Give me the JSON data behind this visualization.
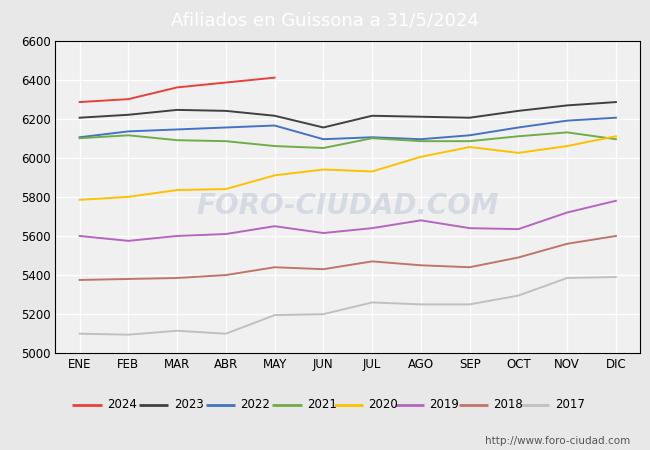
{
  "title": "Afiliados en Guissona a 31/5/2024",
  "title_bg_color": "#5b9bd5",
  "title_text_color": "white",
  "ylim": [
    5000,
    6600
  ],
  "yticks": [
    5000,
    5200,
    5400,
    5600,
    5800,
    6000,
    6200,
    6400,
    6600
  ],
  "months": [
    "ENE",
    "FEB",
    "MAR",
    "ABR",
    "MAY",
    "JUN",
    "JUL",
    "AGO",
    "SEP",
    "OCT",
    "NOV",
    "DIC"
  ],
  "watermark": "http://www.foro-ciudad.com",
  "foro_watermark": "FORO-CIUDAD.COM",
  "series": {
    "2024": {
      "color": "#e8413a",
      "data": [
        6285,
        6300,
        6360,
        6385,
        6410,
        null,
        null,
        null,
        null,
        null,
        null,
        null
      ]
    },
    "2023": {
      "color": "#404040",
      "data": [
        6205,
        6220,
        6245,
        6240,
        6215,
        6155,
        6215,
        6210,
        6205,
        6240,
        6268,
        6285
      ]
    },
    "2022": {
      "color": "#4472c4",
      "data": [
        6105,
        6135,
        6145,
        6155,
        6165,
        6095,
        6105,
        6095,
        6115,
        6155,
        6190,
        6205
      ]
    },
    "2021": {
      "color": "#70ad47",
      "data": [
        6100,
        6115,
        6090,
        6085,
        6060,
        6050,
        6100,
        6085,
        6085,
        6110,
        6130,
        6095
      ]
    },
    "2020": {
      "color": "#ffc000",
      "data": [
        5785,
        5800,
        5835,
        5840,
        5910,
        5940,
        5930,
        6005,
        6055,
        6025,
        6060,
        6110
      ]
    },
    "2019": {
      "color": "#b565c0",
      "data": [
        5600,
        5575,
        5600,
        5610,
        5650,
        5615,
        5640,
        5680,
        5640,
        5635,
        5720,
        5780
      ]
    },
    "2018": {
      "color": "#c0756a",
      "data": [
        5375,
        5380,
        5385,
        5400,
        5440,
        5430,
        5470,
        5450,
        5440,
        5490,
        5560,
        5600
      ]
    },
    "2017": {
      "color": "#c0c0c0",
      "data": [
        5100,
        5095,
        5115,
        5100,
        5195,
        5200,
        5260,
        5250,
        5250,
        5295,
        5385,
        5390
      ]
    }
  },
  "legend_order": [
    "2024",
    "2023",
    "2022",
    "2021",
    "2020",
    "2019",
    "2018",
    "2017"
  ],
  "figure_bg_color": "#e8e8e8",
  "plot_bg_color": "#f0f0f0",
  "plot_border_color": "#000000",
  "grid_color": "#ffffff",
  "watermark_text_color": "#c0c8d8",
  "url_color": "#555555"
}
